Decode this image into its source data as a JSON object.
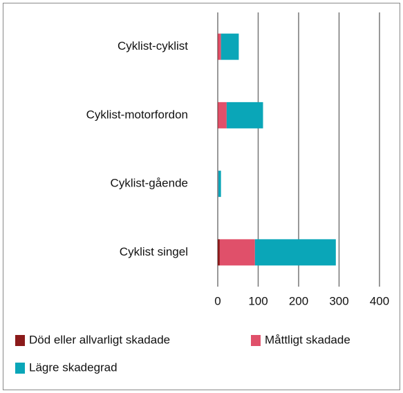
{
  "chart_data": {
    "type": "stacked-barh",
    "categories": [
      "Cyklist-cyklist",
      "Cyklist-motorfordon",
      "Cyklist-gående",
      "Cyklist singel"
    ],
    "series": [
      {
        "name": "Död eller allvarligt skadade",
        "color": "#8b1a1a",
        "values": [
          1,
          1,
          0,
          5
        ]
      },
      {
        "name": "Måttligt skadade",
        "color": "#e0506a",
        "values": [
          7,
          21,
          1,
          87
        ]
      },
      {
        "name": "Lägre skadegrad",
        "color": "#0aa6b8",
        "values": [
          44,
          90,
          7,
          200
        ]
      }
    ],
    "xlim": [
      0,
      400
    ],
    "xticks": [
      0,
      100,
      200,
      300,
      400
    ],
    "grid": true
  }
}
